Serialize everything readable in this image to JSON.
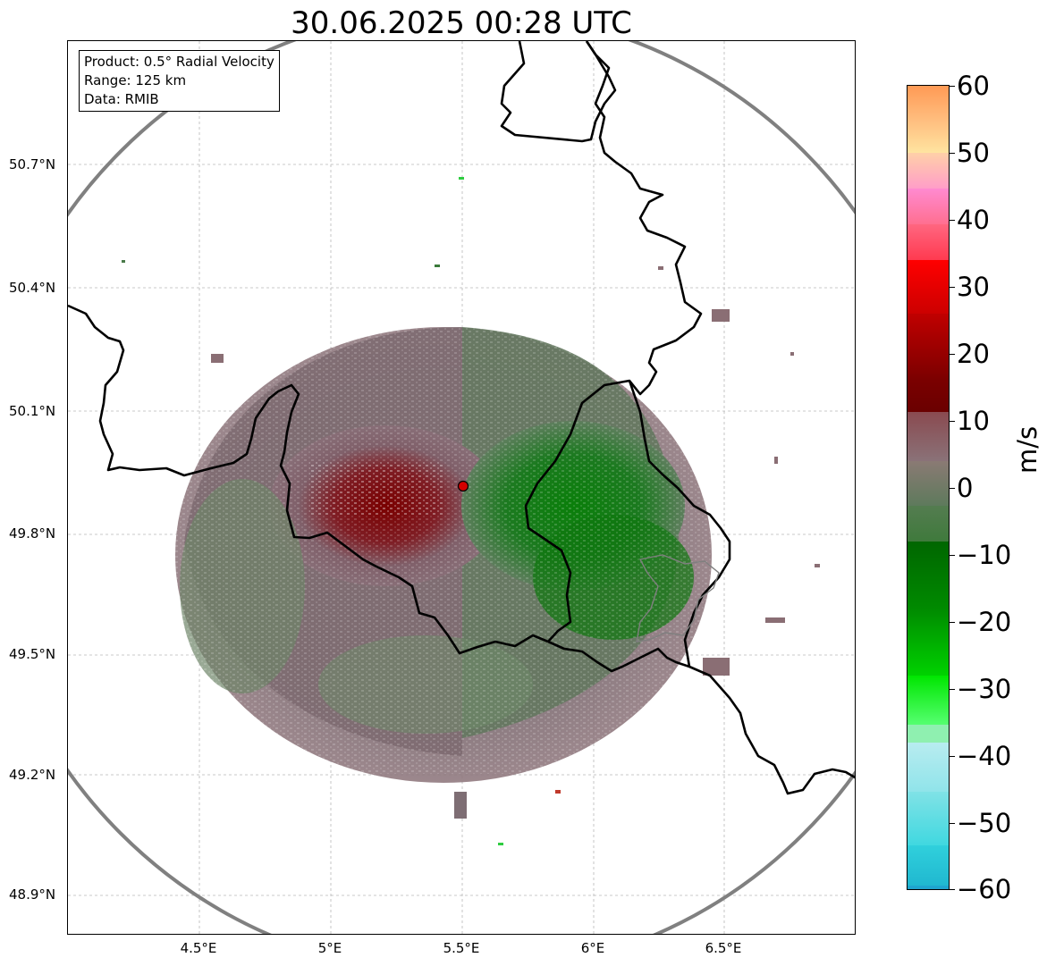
{
  "title": "30.06.2025 00:28 UTC",
  "info_box": {
    "product": "Product: 0.5° Radial Velocity",
    "range": "Range: 125 km",
    "data": "Data: RMIB"
  },
  "map": {
    "lon_range": [
      4.0,
      7.0
    ],
    "lat_range": [
      48.8,
      51.0
    ],
    "radar_site": {
      "lon": 5.5,
      "lat": 49.915
    },
    "range_ring_color": "#808080",
    "border_color": "#000000",
    "lat_ticks": [
      "50.7°N",
      "50.4°N",
      "50.1°N",
      "49.8°N",
      "49.5°N",
      "49.2°N",
      "48.9°N"
    ],
    "lon_ticks": [
      "4.5°E",
      "5°E",
      "5.5°E",
      "6°E",
      "6.5°E"
    ],
    "approaching_color": "#0b7a0b",
    "receding_color": "#7a0000"
  },
  "colorbar": {
    "unit": "m/s",
    "min": -60,
    "max": 60,
    "ticks": [
      "60",
      "50",
      "40",
      "30",
      "20",
      "10",
      "0",
      "−10",
      "−20",
      "−30",
      "−40",
      "−50",
      "−60"
    ]
  }
}
